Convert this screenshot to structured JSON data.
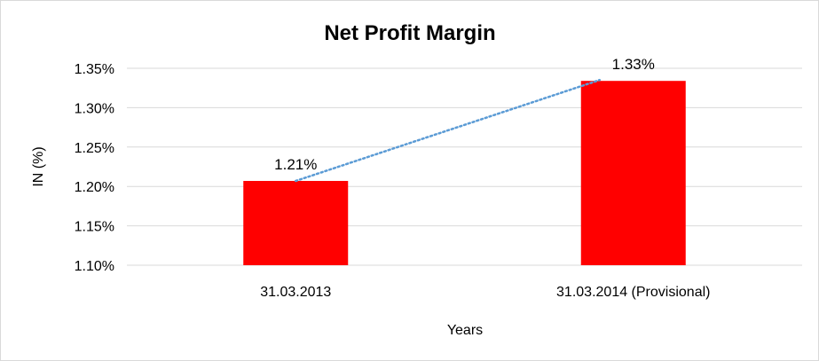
{
  "chart_data": {
    "type": "bar",
    "title": "Net Profit Margin",
    "xlabel": "Years",
    "ylabel": "IN (%)",
    "categories": [
      "31.03.2013",
      "31.03.2014 (Provisional)"
    ],
    "series": [
      {
        "values": [
          1.207,
          1.334
        ],
        "data_labels": [
          "1.21%",
          "1.33%"
        ],
        "color": "#ff0000"
      }
    ],
    "trendline": {
      "type": "linear",
      "style": "dotted",
      "color": "#5b9bd5"
    },
    "ylim": [
      1.1,
      1.35
    ],
    "yticks": [
      1.1,
      1.15,
      1.2,
      1.25,
      1.3,
      1.35
    ],
    "ytick_labels": [
      "1.10%",
      "1.15%",
      "1.20%",
      "1.25%",
      "1.30%",
      "1.35%"
    ],
    "grid": true,
    "legend": "none",
    "colors": {
      "bar": "#ff0000",
      "trendline": "#5b9bd5",
      "grid": "#d9d9d9"
    }
  }
}
